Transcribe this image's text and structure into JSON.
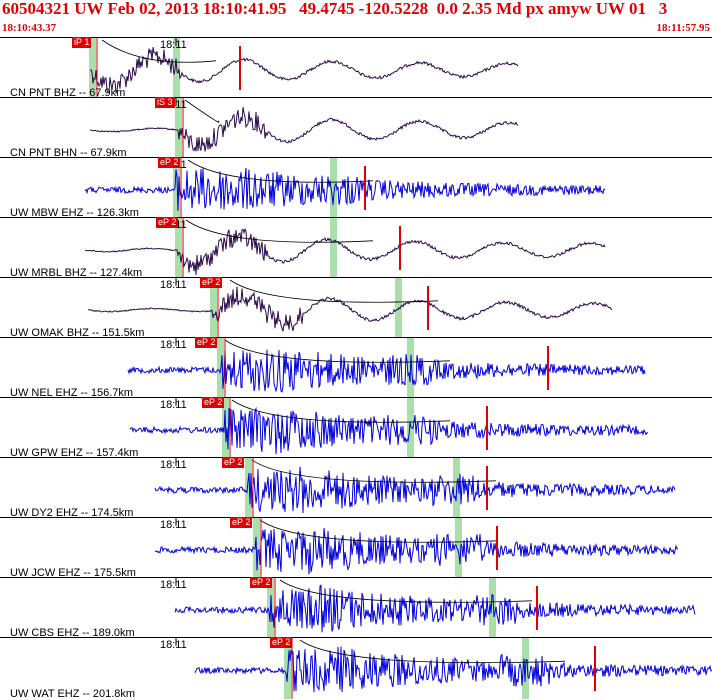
{
  "header": {
    "title": "60504321 UW Feb 02, 2013 18:10:41.95   49.4745 -120.5228  0.0 2.35 Md px amyw UW 01   3",
    "time_start": "18:10:43.37",
    "time_end": "18:11:57.95"
  },
  "colors": {
    "header_text": "#e00000",
    "trace_bh": "#2a0a4a",
    "trace_eh": "#0000dd",
    "pick": "#e00000",
    "window": "#a9dfa9"
  },
  "panels": [
    {
      "label": "CN PNT BHZ -- 67.9km",
      "tick": "18:11",
      "pick_label": "iP 1",
      "type": "bh"
    },
    {
      "label": "CN PNT BHN -- 67.9km",
      "tick": "18:11",
      "pick_label": "iS 3",
      "type": "bh"
    },
    {
      "label": "UW MBW EHZ -- 126.3km",
      "tick": "18:11",
      "pick_label": "eP 2",
      "type": "eh"
    },
    {
      "label": "UW MRBL BHZ -- 127.4km",
      "tick": "18:11",
      "pick_label": "eP 2",
      "type": "bh"
    },
    {
      "label": "UW OMAK BHZ -- 151.5km",
      "tick": "18:11",
      "pick_label": "eP 2",
      "type": "bh"
    },
    {
      "label": "UW NEL EHZ -- 156.7km",
      "tick": "18:11",
      "pick_label": "eP 2",
      "type": "eh"
    },
    {
      "label": "UW GPW EHZ -- 157.4km",
      "tick": "18:11",
      "pick_label": "eP 2",
      "type": "eh"
    },
    {
      "label": "UW DY2 EHZ -- 174.5km",
      "tick": "18:11",
      "pick_label": "eP 2",
      "type": "eh"
    },
    {
      "label": "UW JCW EHZ -- 175.5km",
      "tick": "18:11",
      "pick_label": "eP 2",
      "type": "eh"
    },
    {
      "label": "UW CBS EHZ -- 189.0km",
      "tick": "18:11",
      "pick_label": "eP 2",
      "type": "eh"
    },
    {
      "label": "UW WAT EHZ -- 201.8km",
      "tick": "18:11",
      "pick_label": "eP 2",
      "type": "eh"
    }
  ]
}
